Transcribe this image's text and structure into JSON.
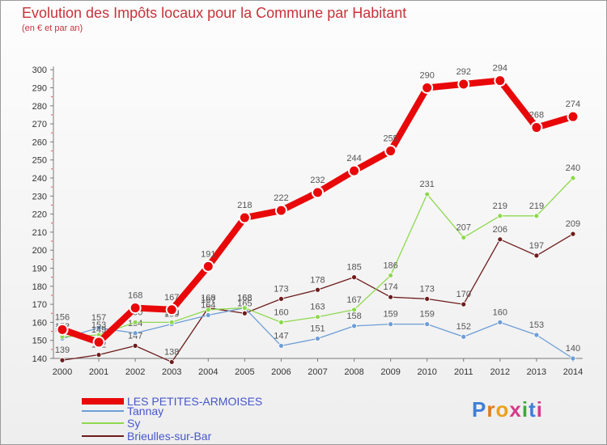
{
  "header": {
    "title": "Evolution des Impôts locaux pour la Commune par Habitant",
    "subtitle": "(en € et par an)"
  },
  "logo": {
    "text": "Proxiti"
  },
  "chart_data": {
    "type": "line",
    "title": "Evolution des Impôts locaux pour la Commune par Habitant",
    "subtitle": "(en € et par an)",
    "xlabel": "",
    "ylabel": "",
    "ylim": [
      135,
      300
    ],
    "yticks": [
      140,
      150,
      160,
      170,
      180,
      190,
      200,
      210,
      220,
      230,
      240,
      250,
      260,
      270,
      280,
      290,
      300
    ],
    "categories": [
      "2000",
      "2001",
      "2002",
      "2003",
      "2004",
      "2005",
      "2006",
      "2007",
      "2008",
      "2009",
      "2010",
      "2011",
      "2012",
      "2013",
      "2014"
    ],
    "grid": false,
    "legend_position": "bottom-left",
    "series": [
      {
        "name": "Brieulles-sur-Bar",
        "color": "#6e1c1c",
        "values": [
          139,
          142,
          147,
          138,
          168,
          165,
          173,
          178,
          185,
          174,
          173,
          170,
          206,
          197,
          209
        ],
        "labels": [
          "139",
          "142",
          "147",
          "138",
          "168",
          "165",
          "173",
          "178",
          "185",
          "174",
          "173",
          "170",
          "206",
          "197",
          "209"
        ]
      },
      {
        "name": "Tannay",
        "color": "#6d9ed6",
        "values": [
          151,
          157,
          154,
          159,
          164,
          168,
          147,
          151,
          158,
          159,
          159,
          152,
          160,
          153,
          140
        ],
        "labels": [
          "151",
          "157",
          "154",
          "159",
          "164",
          "168",
          "147",
          "151",
          "158",
          "159",
          "159",
          "152",
          "160",
          "153",
          "140"
        ]
      },
      {
        "name": "Sy",
        "color": "#8ed84f",
        "values": [
          152,
          153,
          160,
          160,
          167,
          168,
          160,
          163,
          167,
          186,
          231,
          207,
          219,
          219,
          240
        ],
        "labels": [
          "152",
          "153",
          "160",
          "160",
          "167",
          "168",
          "160",
          "163",
          "167",
          "186",
          "231",
          "207",
          "219",
          "219",
          "240"
        ]
      },
      {
        "name": "LES PETITES-ARMOISES",
        "color": "#e8080a",
        "values": [
          156,
          149,
          168,
          167,
          191,
          218,
          222,
          232,
          244,
          255,
          290,
          292,
          294,
          268,
          274
        ],
        "labels": [
          "156",
          "149",
          "168",
          "167",
          "191",
          "218",
          "222",
          "232",
          "244",
          "255",
          "290",
          "292",
          "294",
          "268",
          "274"
        ]
      }
    ],
    "legend": [
      "LES PETITES-ARMOISES",
      "Tannay",
      "Sy",
      "Brieulles-sur-Bar"
    ]
  }
}
